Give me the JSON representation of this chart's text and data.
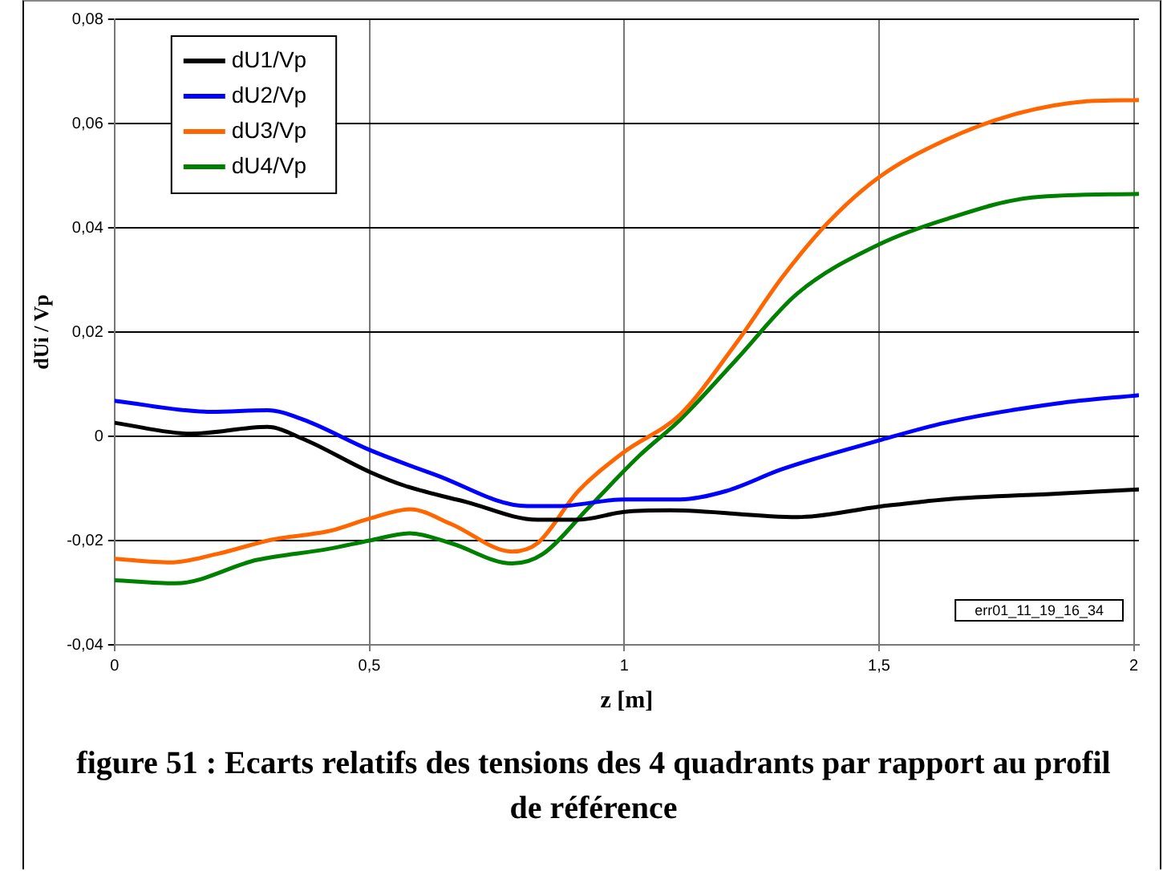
{
  "chart_data": {
    "type": "line",
    "title": "figure 51 : Ecarts relatifs des tensions des 4 quadrants par rapport au profil de référence",
    "xlabel": "z [m]",
    "ylabel": "dUi / Vp",
    "annotations": [
      "err01_11_19_16_34"
    ],
    "xlim": [
      0,
      2.01
    ],
    "xticks": [
      0,
      {
        "value": 0.5,
        "label": "0,5"
      },
      1,
      {
        "value": 1.5,
        "label": "1,5"
      },
      2
    ],
    "ylim": [
      -0.04,
      0.08
    ],
    "yticks": [
      {
        "value": -0.04,
        "label": "-0,04"
      },
      {
        "value": -0.02,
        "label": "-0,02"
      },
      0,
      {
        "value": 0.02,
        "label": "0,02"
      },
      {
        "value": 0.04,
        "label": "0,04"
      },
      {
        "value": 0.06,
        "label": "0,06"
      },
      {
        "value": 0.08,
        "label": "0,08"
      }
    ],
    "grid": true,
    "legend": "top left",
    "marker": "none",
    "line_style": "solid",
    "series": [
      {
        "name": "dU1/Vp",
        "color": "#000000",
        "x": [
          0,
          0.15,
          0.3,
          0.37,
          0.5,
          0.57,
          0.69,
          0.83,
          0.91,
          1.0,
          1.09,
          1.34,
          1.5,
          1.63,
          1.85,
          2.01
        ],
        "values": [
          0.0026,
          0.0005,
          0.0018,
          -0.0005,
          -0.0068,
          -0.0095,
          -0.0126,
          -0.016,
          -0.016,
          -0.0145,
          -0.0142,
          -0.0155,
          -0.0135,
          -0.0121,
          -0.011,
          -0.0102
        ]
      },
      {
        "name": "dU2/Vp",
        "color": "#0000ff",
        "x": [
          0,
          0.19,
          0.3,
          0.37,
          0.5,
          0.63,
          0.81,
          0.87,
          1.0,
          1.11,
          1.2,
          1.31,
          1.5,
          1.63,
          1.85,
          2.01
        ],
        "values": [
          0.0068,
          0.0047,
          0.005,
          0.0032,
          -0.0026,
          -0.0074,
          -0.0134,
          -0.0134,
          -0.0121,
          -0.0121,
          -0.0105,
          -0.0063,
          -0.0008,
          0.0026,
          0.0063,
          0.0079
        ]
      },
      {
        "name": "dU3/Vp",
        "color": "#ff6600",
        "x": [
          0,
          0.11,
          0.2,
          0.31,
          0.42,
          0.5,
          0.58,
          0.66,
          0.78,
          0.83,
          0.91,
          1.0,
          1.11,
          1.22,
          1.31,
          1.4,
          1.5,
          1.63,
          1.76,
          1.9,
          2.01
        ],
        "values": [
          -0.0235,
          -0.0242,
          -0.0226,
          -0.0198,
          -0.0182,
          -0.0158,
          -0.014,
          -0.0168,
          -0.0221,
          -0.0205,
          -0.0105,
          -0.003,
          0.0042,
          0.0179,
          0.0305,
          0.041,
          0.0497,
          0.0568,
          0.0616,
          0.0642,
          0.0645
        ]
      },
      {
        "name": "dU4/Vp",
        "color": "#008000",
        "x": [
          0,
          0.12,
          0.28,
          0.42,
          0.5,
          0.58,
          0.66,
          0.78,
          0.84,
          0.93,
          1.03,
          1.11,
          1.22,
          1.34,
          1.5,
          1.63,
          1.8,
          2.01
        ],
        "values": [
          -0.0276,
          -0.0282,
          -0.0237,
          -0.0216,
          -0.02,
          -0.0186,
          -0.0205,
          -0.0244,
          -0.0226,
          -0.0137,
          -0.0037,
          0.0032,
          0.0147,
          0.0274,
          0.0368,
          0.0416,
          0.0458,
          0.0465
        ]
      }
    ]
  }
}
